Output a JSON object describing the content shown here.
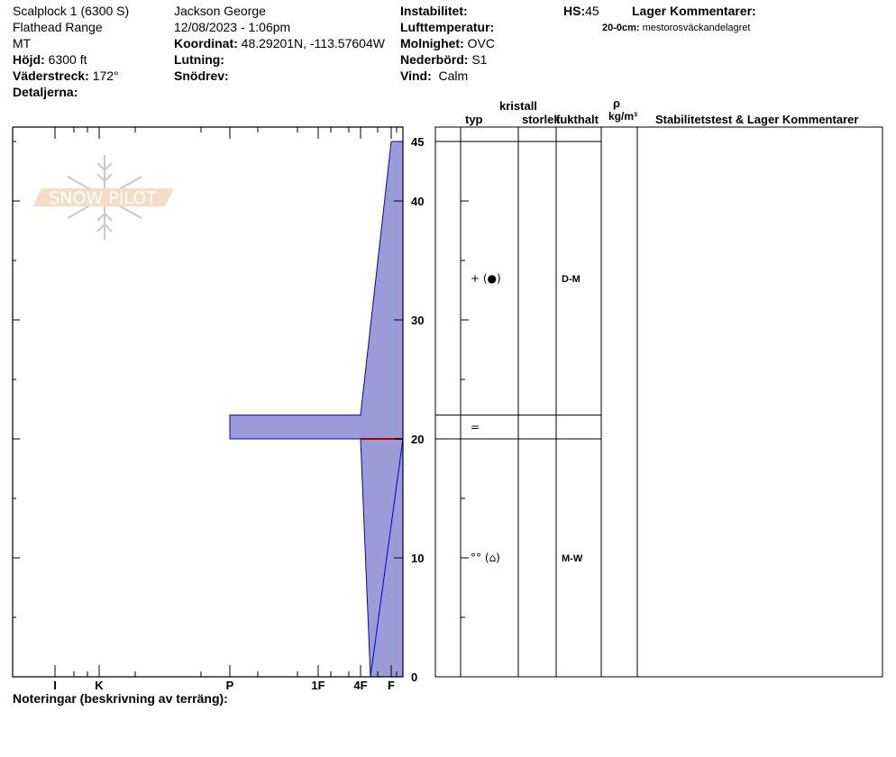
{
  "header": {
    "location": "Scalplock 1 (6300 S)",
    "range": "Flathead Range",
    "state": "MT",
    "elevation_label": "Höjd:",
    "elevation": "6300 ft",
    "aspect_label": "Väderstreck:",
    "aspect": "172°",
    "details_label": "Detaljerna:",
    "observer": "Jackson George",
    "datetime": "12/08/2023 - 1:06pm",
    "coords_label": "Koordinat:",
    "coords": "48.29201N, -113.57604W",
    "slope_label": "Lutning:",
    "wind_loading_label": "Snödrev:",
    "instability_label": "Instabilitet:",
    "air_temp_label": "Lufttemperatur:",
    "sky_label": "Molnighet:",
    "sky": "OVC",
    "precip_label": "Nederbörd:",
    "precip": "S1",
    "wind_label": "Vind:",
    "wind": "Calm",
    "hs_label": "HS:",
    "hs": "45",
    "layer_comments_label": "Lager Kommentarer:",
    "layer_comment_range": "20-0cm:",
    "layer_comment_text": "mestorosväckandelagret"
  },
  "table_headers": {
    "crystal": "kristall",
    "type": "typ",
    "size": "storlek",
    "moisture": "fukthalt",
    "rho": "ρ",
    "density_unit": "kg/m³",
    "stability": "Stabilitetstest & Lager Kommentarer"
  },
  "notes_label": "Noteringar (beskrivning av terräng):",
  "logo_text": "SNOW PILOT",
  "colors": {
    "profile_fill": "#9b9bd7",
    "profile_edge": "#0000cc",
    "weak_layer": "#aa0000"
  },
  "chart_data": {
    "type": "snow-profile",
    "depth_ticks": [
      "0",
      "10",
      "20",
      "30",
      "40",
      "45"
    ],
    "depth_range": [
      0,
      45
    ],
    "hardness_ticks": [
      "I",
      "K",
      "P",
      "1F",
      "4F",
      "F"
    ],
    "profile": [
      {
        "depth": 45,
        "hardness": "F"
      },
      {
        "depth": 22,
        "hardness": "4F"
      },
      {
        "depth": 22,
        "hardness": "P"
      },
      {
        "depth": 20,
        "hardness": "P"
      },
      {
        "depth": 20,
        "hardness": "4F"
      },
      {
        "depth": 0,
        "hardness": "4F-"
      }
    ],
    "weak_layer_depth": 20,
    "layers": [
      {
        "top": 45,
        "bottom": 22,
        "type": "+ (●)",
        "moisture": "D-M"
      },
      {
        "top": 22,
        "bottom": 20,
        "type": "=",
        "moisture": ""
      },
      {
        "top": 20,
        "bottom": 0,
        "type": "°° (⌂)",
        "moisture": "M-W"
      }
    ]
  }
}
